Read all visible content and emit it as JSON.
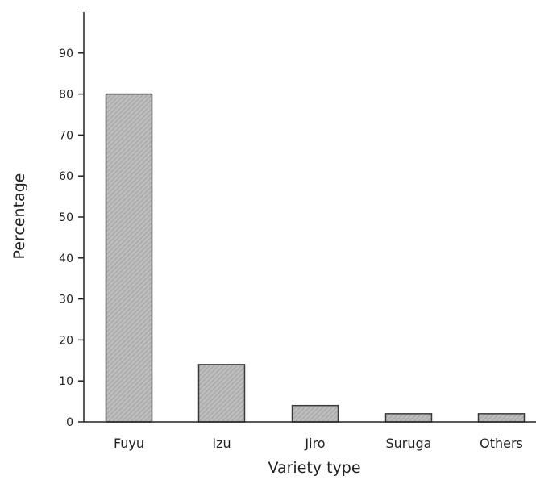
{
  "chart_data": {
    "type": "bar",
    "title": "",
    "xlabel": "Variety type",
    "ylabel": "Percentage",
    "categories": [
      "Fuyu",
      "Izu",
      "Jiro",
      "Suruga",
      "Others"
    ],
    "values": [
      80,
      14,
      4,
      2,
      2
    ],
    "ylim": [
      0,
      100
    ],
    "yticks": [
      0,
      10,
      20,
      30,
      40,
      50,
      60,
      70,
      80,
      90
    ],
    "grid": false,
    "legend": "none",
    "bar_color": "#b4b4b4",
    "bar_edge_color": "#3a3a3a"
  }
}
